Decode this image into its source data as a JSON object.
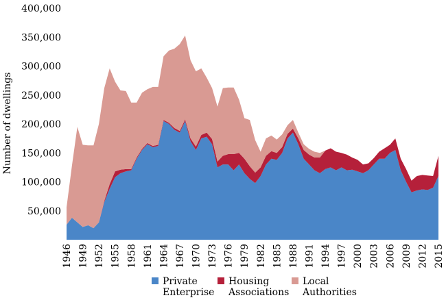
{
  "chart_data": {
    "type": "area",
    "stacked": true,
    "title": "",
    "xlabel": "",
    "ylabel": "Number of dwellings",
    "ylim": [
      0,
      400000
    ],
    "y_ticks": [
      {
        "value": 50000,
        "label": "50,000"
      },
      {
        "value": 100000,
        "label": "100,000"
      },
      {
        "value": 150000,
        "label": "150,000"
      },
      {
        "value": 200000,
        "label": "200,000"
      },
      {
        "value": 250000,
        "label": "250,000"
      },
      {
        "value": 300000,
        "label": "300,000"
      },
      {
        "value": 350000,
        "label": "350,000"
      },
      {
        "value": 400000,
        "label": "400,000"
      }
    ],
    "x_ticks": [
      "1946",
      "1949",
      "1952",
      "1955",
      "1958",
      "1961",
      "1964",
      "1967",
      "1970",
      "1973",
      "1976",
      "1979",
      "1982",
      "1985",
      "1988",
      "1991",
      "1994",
      "1997",
      "2000",
      "2003",
      "2006",
      "2009",
      "2012",
      "2015"
    ],
    "grid": false,
    "legend_position": "bottom",
    "x": [
      1946,
      1947,
      1948,
      1949,
      1950,
      1951,
      1952,
      1953,
      1954,
      1955,
      1956,
      1957,
      1958,
      1959,
      1960,
      1961,
      1962,
      1963,
      1964,
      1965,
      1966,
      1967,
      1968,
      1969,
      1970,
      1971,
      1972,
      1973,
      1974,
      1975,
      1976,
      1977,
      1978,
      1979,
      1980,
      1981,
      1982,
      1983,
      1984,
      1985,
      1986,
      1987,
      1988,
      1989,
      1990,
      1991,
      1992,
      1993,
      1994,
      1995,
      1996,
      1997,
      1998,
      1999,
      2000,
      2001,
      2002,
      2003,
      2004,
      2005,
      2006,
      2007,
      2008,
      2009,
      2010,
      2011,
      2012,
      2013,
      2014,
      2015
    ],
    "series": [
      {
        "name": "Private Enterprise",
        "color": "#4a86c8",
        "values": [
          26000,
          38000,
          30000,
          22000,
          25000,
          20000,
          30000,
          65000,
          88000,
          108000,
          115000,
          118000,
          120000,
          140000,
          155000,
          165000,
          160000,
          162000,
          205000,
          200000,
          190000,
          185000,
          205000,
          170000,
          155000,
          175000,
          178000,
          165000,
          125000,
          130000,
          130000,
          120000,
          130000,
          115000,
          105000,
          98000,
          110000,
          130000,
          140000,
          138000,
          150000,
          175000,
          185000,
          165000,
          140000,
          130000,
          120000,
          115000,
          122000,
          125000,
          120000,
          125000,
          120000,
          121000,
          118000,
          115000,
          120000,
          130000,
          140000,
          140000,
          150000,
          155000,
          120000,
          100000,
          82000,
          85000,
          87000,
          86000,
          90000,
          110000
        ]
      },
      {
        "name": "Housing Associations",
        "color": "#b5203a",
        "values": [
          0,
          0,
          0,
          0,
          0,
          0,
          0,
          2000,
          8000,
          10000,
          6000,
          4000,
          2000,
          2000,
          2000,
          2000,
          2000,
          2000,
          2000,
          2000,
          3000,
          3000,
          3000,
          5000,
          6000,
          6000,
          7000,
          9000,
          10000,
          15000,
          18000,
          28000,
          20000,
          25000,
          22000,
          18000,
          15000,
          15000,
          13000,
          12000,
          10000,
          8000,
          7000,
          10000,
          15000,
          17000,
          22000,
          27000,
          32000,
          33000,
          32000,
          25000,
          27000,
          21000,
          20000,
          15000,
          12000,
          11000,
          12000,
          18000,
          14000,
          20000,
          20000,
          22000,
          20000,
          25000,
          25000,
          25000,
          20000,
          35000
        ]
      },
      {
        "name": "Local Authorities",
        "color": "#d99a93",
        "values": [
          30000,
          90000,
          165000,
          142000,
          138000,
          143000,
          170000,
          195000,
          200000,
          155000,
          137000,
          135000,
          115000,
          95000,
          97000,
          93000,
          102000,
          100000,
          110000,
          125000,
          137000,
          150000,
          145000,
          135000,
          130000,
          115000,
          95000,
          88000,
          95000,
          117000,
          115000,
          115000,
          92000,
          70000,
          80000,
          56000,
          27000,
          30000,
          27000,
          23000,
          22000,
          15000,
          15000,
          10000,
          10000,
          10000,
          10000,
          8000,
          0,
          0,
          0,
          0,
          0,
          0,
          0,
          0,
          0,
          0,
          0,
          0,
          0,
          0,
          0,
          0,
          0,
          0,
          0,
          0,
          0,
          0
        ]
      }
    ]
  },
  "legend": {
    "items": [
      {
        "line1": "Private",
        "line2": "Enterprise",
        "color": "#4a86c8"
      },
      {
        "line1": "Housing",
        "line2": "Associations",
        "color": "#b5203a"
      },
      {
        "line1": "Local",
        "line2": "Authorities",
        "color": "#d99a93"
      }
    ]
  }
}
